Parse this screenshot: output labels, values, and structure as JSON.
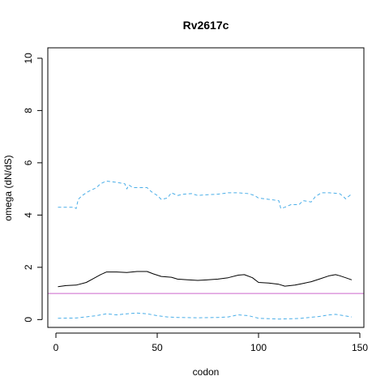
{
  "chart_data": {
    "type": "line",
    "title": "Rv2617c",
    "xlabel": "codon",
    "ylabel": "omega (dN/dS)",
    "xlim": [
      -4,
      152
    ],
    "ylim": [
      -0.3,
      10.4
    ],
    "xticks": [
      0,
      50,
      100,
      150
    ],
    "yticks": [
      0,
      2,
      4,
      6,
      8,
      10
    ],
    "grid": false,
    "legend": "none",
    "series": [
      {
        "style": "solid",
        "color": "#000000",
        "points": [
          [
            1,
            1.26
          ],
          [
            5,
            1.3
          ],
          [
            10,
            1.32
          ],
          [
            15,
            1.42
          ],
          [
            18,
            1.55
          ],
          [
            22,
            1.72
          ],
          [
            25,
            1.82
          ],
          [
            30,
            1.82
          ],
          [
            35,
            1.8
          ],
          [
            40,
            1.84
          ],
          [
            45,
            1.84
          ],
          [
            48,
            1.75
          ],
          [
            52,
            1.65
          ],
          [
            57,
            1.62
          ],
          [
            60,
            1.55
          ],
          [
            65,
            1.52
          ],
          [
            70,
            1.5
          ],
          [
            75,
            1.52
          ],
          [
            80,
            1.55
          ],
          [
            85,
            1.6
          ],
          [
            90,
            1.7
          ],
          [
            93,
            1.72
          ],
          [
            97,
            1.6
          ],
          [
            100,
            1.42
          ],
          [
            105,
            1.4
          ],
          [
            110,
            1.35
          ],
          [
            113,
            1.28
          ],
          [
            118,
            1.32
          ],
          [
            122,
            1.38
          ],
          [
            126,
            1.45
          ],
          [
            130,
            1.55
          ],
          [
            135,
            1.68
          ],
          [
            138,
            1.72
          ],
          [
            140,
            1.68
          ],
          [
            143,
            1.6
          ],
          [
            146,
            1.52
          ]
        ]
      },
      {
        "style": "dashed",
        "color": "#4aaee8",
        "points": [
          [
            1,
            4.3
          ],
          [
            5,
            4.3
          ],
          [
            9,
            4.3
          ],
          [
            10,
            4.25
          ],
          [
            11,
            4.6
          ],
          [
            13,
            4.75
          ],
          [
            16,
            4.9
          ],
          [
            20,
            5.05
          ],
          [
            22,
            5.2
          ],
          [
            25,
            5.3
          ],
          [
            30,
            5.25
          ],
          [
            34,
            5.2
          ],
          [
            35,
            5.0
          ],
          [
            36,
            5.15
          ],
          [
            38,
            5.05
          ],
          [
            40,
            5.05
          ],
          [
            45,
            5.05
          ],
          [
            47,
            4.9
          ],
          [
            50,
            4.75
          ],
          [
            52,
            4.6
          ],
          [
            55,
            4.65
          ],
          [
            57,
            4.85
          ],
          [
            60,
            4.75
          ],
          [
            63,
            4.8
          ],
          [
            67,
            4.82
          ],
          [
            70,
            4.75
          ],
          [
            75,
            4.78
          ],
          [
            80,
            4.8
          ],
          [
            85,
            4.85
          ],
          [
            90,
            4.85
          ],
          [
            95,
            4.82
          ],
          [
            98,
            4.75
          ],
          [
            100,
            4.65
          ],
          [
            105,
            4.6
          ],
          [
            110,
            4.55
          ],
          [
            111,
            4.25
          ],
          [
            113,
            4.3
          ],
          [
            116,
            4.4
          ],
          [
            120,
            4.4
          ],
          [
            122,
            4.55
          ],
          [
            126,
            4.5
          ],
          [
            128,
            4.7
          ],
          [
            131,
            4.85
          ],
          [
            135,
            4.85
          ],
          [
            140,
            4.82
          ],
          [
            142,
            4.7
          ],
          [
            143,
            4.62
          ],
          [
            145,
            4.75
          ],
          [
            146,
            4.8
          ]
        ]
      },
      {
        "style": "dashed",
        "color": "#4aaee8",
        "points": [
          [
            1,
            0.05
          ],
          [
            10,
            0.06
          ],
          [
            20,
            0.15
          ],
          [
            25,
            0.22
          ],
          [
            30,
            0.18
          ],
          [
            35,
            0.22
          ],
          [
            40,
            0.25
          ],
          [
            45,
            0.22
          ],
          [
            50,
            0.15
          ],
          [
            55,
            0.1
          ],
          [
            60,
            0.08
          ],
          [
            70,
            0.07
          ],
          [
            80,
            0.08
          ],
          [
            85,
            0.1
          ],
          [
            90,
            0.18
          ],
          [
            95,
            0.15
          ],
          [
            100,
            0.05
          ],
          [
            110,
            0.02
          ],
          [
            120,
            0.04
          ],
          [
            130,
            0.12
          ],
          [
            135,
            0.18
          ],
          [
            138,
            0.2
          ],
          [
            142,
            0.15
          ],
          [
            146,
            0.1
          ]
        ]
      },
      {
        "style": "solid",
        "color": "#cc66cc",
        "points": [
          [
            -4,
            1
          ],
          [
            152,
            1
          ]
        ]
      }
    ]
  }
}
